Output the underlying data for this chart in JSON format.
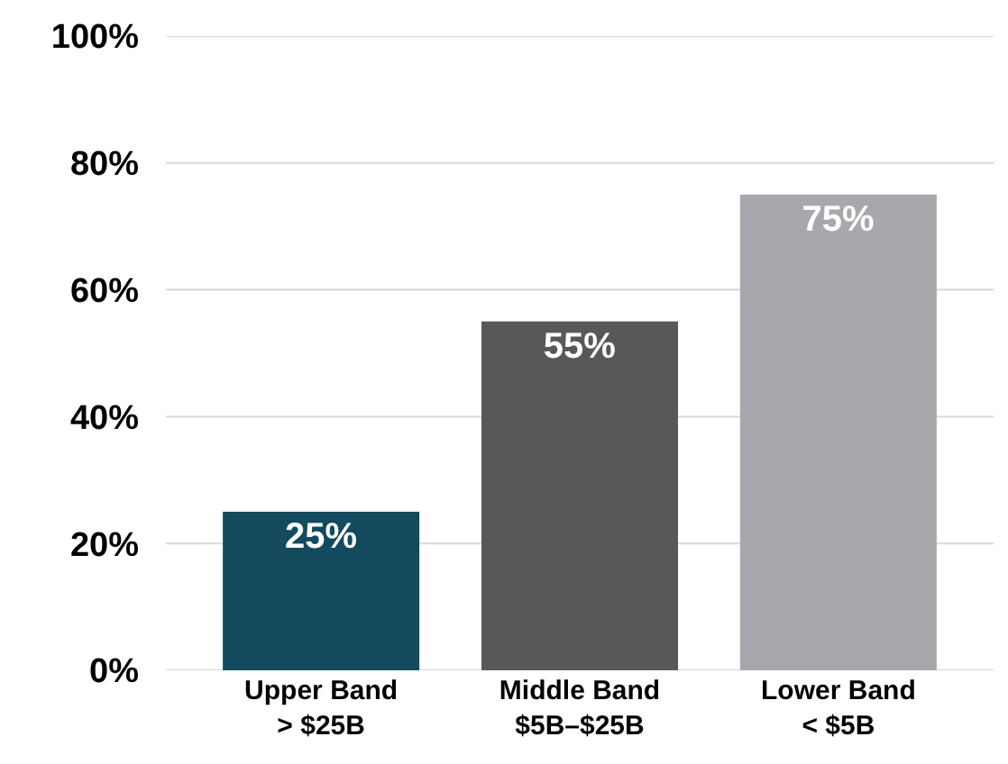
{
  "chart_data": {
    "type": "bar",
    "categories": [
      "Upper Band\n> $25B",
      "Middle Band\n$5B–$25B",
      "Lower Band\n< $5B"
    ],
    "values": [
      25,
      55,
      75
    ],
    "value_labels": [
      "25%",
      "55%",
      "75%"
    ],
    "colors": [
      "#134a5e",
      "#58585a",
      "#a7a8ab"
    ],
    "ylim": [
      0,
      100
    ],
    "yticks": [
      {
        "value": 0,
        "label": "0%"
      },
      {
        "value": 20,
        "label": "20%"
      },
      {
        "value": 40,
        "label": "40%"
      },
      {
        "value": 60,
        "label": "60%"
      },
      {
        "value": 80,
        "label": "80%"
      },
      {
        "value": 100,
        "label": "100%"
      }
    ],
    "grid": "y"
  }
}
